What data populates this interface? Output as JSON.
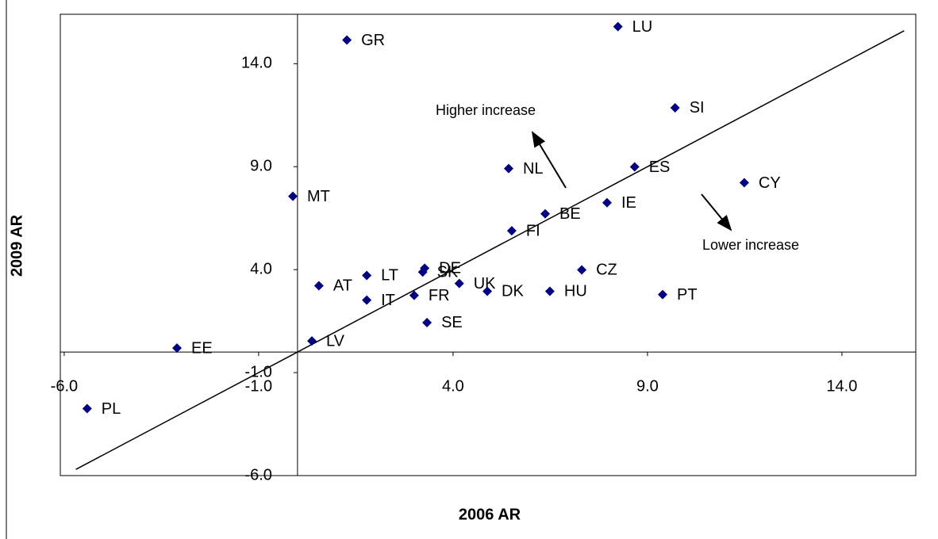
{
  "chart_data": {
    "type": "scatter",
    "x_label": "2006 AR",
    "y_label": "2009 AR",
    "labels": [
      "GR",
      "LU",
      "SI",
      "NL",
      "ES",
      "CY",
      "MT",
      "IE",
      "BE",
      "FI",
      "DE",
      "SK",
      "CZ",
      "LT",
      "AT",
      "UK",
      "DK",
      "HU",
      "PT",
      "IT",
      "FR",
      "SE",
      "LV",
      "EE",
      "PL"
    ],
    "x": [
      1.27,
      8.24,
      9.71,
      5.43,
      8.67,
      11.49,
      -0.12,
      7.96,
      6.37,
      5.51,
      3.27,
      3.22,
      7.31,
      1.78,
      0.55,
      4.16,
      4.88,
      6.49,
      9.39,
      1.78,
      3.0,
      3.33,
      0.37,
      -3.1,
      -5.41
    ],
    "y": [
      15.15,
      15.8,
      11.86,
      8.91,
      8.99,
      8.22,
      7.56,
      7.25,
      6.71,
      5.89,
      4.07,
      3.88,
      3.99,
      3.72,
      3.22,
      3.33,
      2.95,
      2.95,
      2.79,
      2.52,
      2.75,
      1.43,
      0.54,
      0.19,
      -2.75
    ],
    "color": "#000080",
    "reference_line": {
      "x": [
        -5.7,
        15.6
      ],
      "y": [
        -5.7,
        15.6
      ]
    },
    "annotations": [
      "Higher increase",
      "Lower increase"
    ],
    "xlim": [
      -6.1,
      15.9
    ],
    "ylim": [
      -6,
      16.4
    ],
    "xticks": [
      {
        "value": -6,
        "label": "-6.0"
      },
      {
        "value": -1,
        "label": "-1.0"
      },
      {
        "value": 4,
        "label": "4.0"
      },
      {
        "value": 9,
        "label": "9.0"
      },
      {
        "value": 14,
        "label": "14.0"
      }
    ],
    "yticks": [
      {
        "value": -6,
        "label": "-6.0"
      },
      {
        "value": -1,
        "label": "-1.0"
      },
      {
        "value": 4,
        "label": "4.0"
      },
      {
        "value": 9,
        "label": "9.0"
      },
      {
        "value": 14,
        "label": "14.0"
      }
    ]
  }
}
